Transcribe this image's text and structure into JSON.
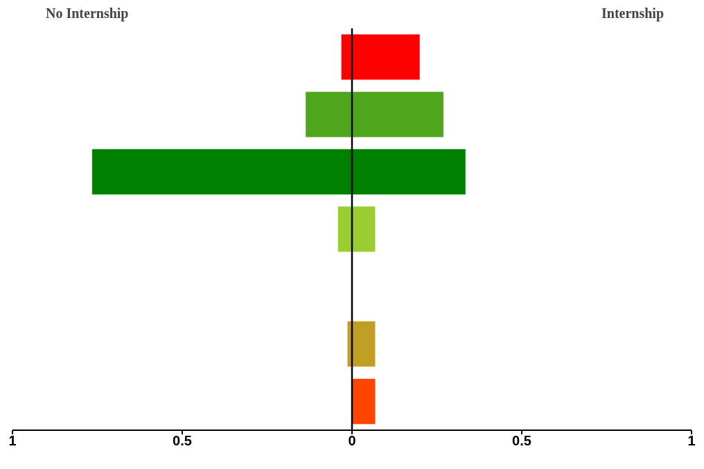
{
  "chart_data": {
    "type": "bar",
    "orientation": "horizontal",
    "stacked": true,
    "categories": [
      null,
      null,
      null,
      null,
      null,
      null,
      null
    ],
    "series": [
      {
        "colors": [
          "#ff0000",
          "#4fa61c",
          "#008000",
          "#9acd32",
          null,
          "#bfa024",
          "#ff4500"
        ],
        "values": [
          -0.032,
          -0.137,
          -0.766,
          -0.042,
          null,
          -0.014,
          0
        ]
      },
      {
        "colors": [
          "#ff0000",
          "#4fa61c",
          "#008000",
          "#9acd32",
          null,
          "#bfa024",
          "#ff4500"
        ],
        "values": [
          0.2,
          0.27,
          0.335,
          0.069,
          null,
          0.069,
          0.069
        ]
      }
    ],
    "xlim": [
      -1,
      1
    ],
    "xticks": [
      {
        "value": -1,
        "label": "1"
      },
      {
        "value": -0.5,
        "label": "0.5"
      },
      0,
      0.5,
      1
    ],
    "ref_lines": [
      {
        "axis": "x",
        "value": 0,
        "color": "#000000"
      }
    ],
    "annotations": [
      "No Internship",
      "Internship"
    ],
    "grid": false,
    "tick_labels": "x"
  }
}
